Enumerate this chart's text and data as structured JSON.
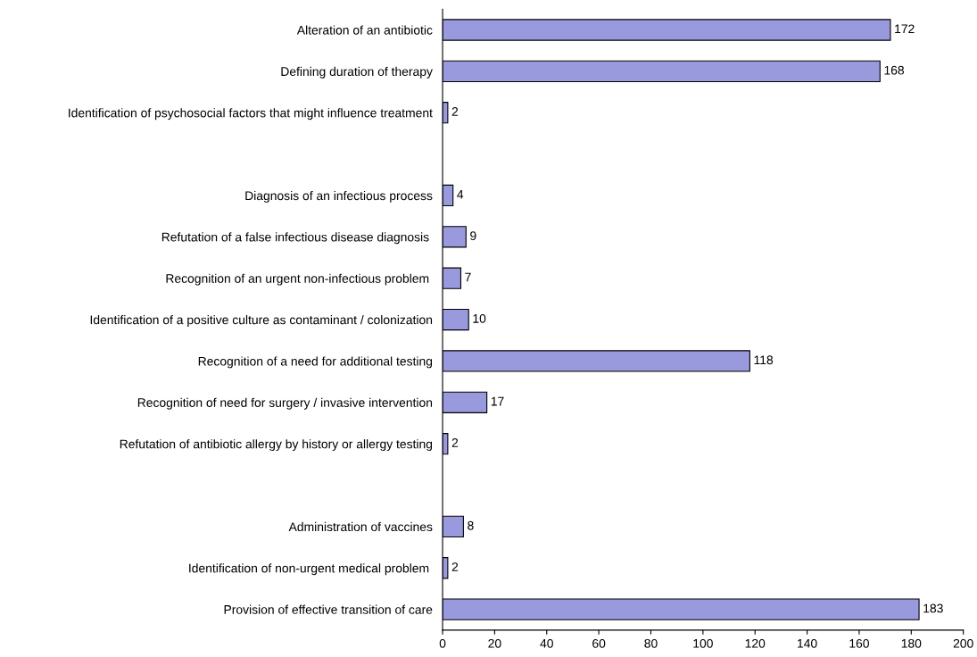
{
  "chart_data": {
    "type": "bar",
    "orientation": "horizontal",
    "categories": [
      "Alteration of an antibiotic",
      "Defining duration of therapy",
      "Identification of psychosocial factors that might influence treatment",
      null,
      "Diagnosis of an infectious process",
      "Refutation of a false infectious disease diagnosis ",
      "Recognition of an urgent non-infectious problem ",
      "Identification of a positive culture as contaminant / colonization",
      "Recognition of a need for additional testing",
      "Recognition of need for surgery / invasive intervention",
      "Refutation of antibiotic allergy by history or allergy testing",
      null,
      "Administration of vaccines",
      "Identification of non-urgent medical problem ",
      "Provision of effective transition of care"
    ],
    "values": [
      172,
      168,
      2,
      null,
      4,
      9,
      7,
      10,
      118,
      17,
      2,
      null,
      8,
      2,
      183
    ],
    "color": "#9999dd",
    "data_labels": true,
    "grid": false,
    "legend": false,
    "xlim": [
      0,
      200
    ],
    "xticks": [
      0,
      20,
      40,
      60,
      80,
      100,
      120,
      140,
      160,
      180,
      200
    ]
  }
}
